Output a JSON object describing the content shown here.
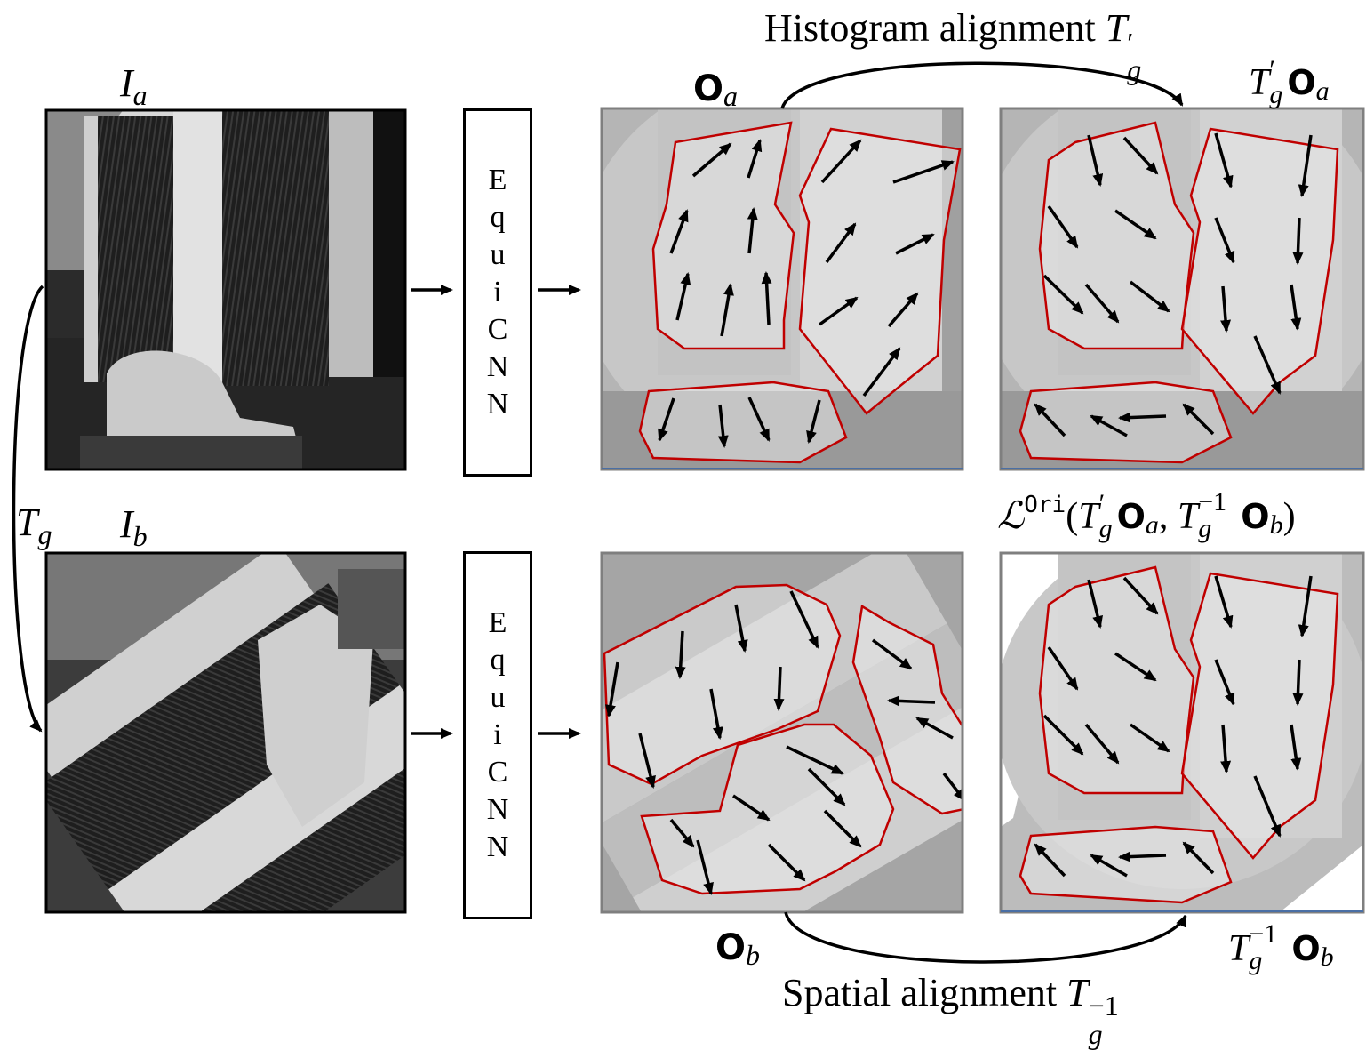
{
  "top_caption": {
    "text": "Histogram alignment ",
    "symbol": "T",
    "sup": "′",
    "sub": "g"
  },
  "bottom_caption": {
    "text": "Spatial alignment ",
    "symbol": "T",
    "sup": "−1",
    "sub": "g"
  },
  "labels": {
    "Ia": {
      "symbol": "I",
      "sub": "a"
    },
    "Ib": {
      "symbol": "I",
      "sub": "b"
    },
    "Tg": {
      "symbol": "T",
      "sub": "g"
    },
    "Oa": {
      "symbol": "O",
      "sub": "a"
    },
    "Ob": {
      "symbol": "O",
      "sub": "b"
    },
    "TgOa": {
      "T": "T",
      "sup": "′",
      "sub": "g",
      "O": "O",
      "osub": "a"
    },
    "TginvOb": {
      "T": "T",
      "sup": "−1",
      "sub": "g",
      "O": "O",
      "osub": "b"
    },
    "loss": {
      "L": "ℒ",
      "sup": "Ori",
      "open": "(",
      "comma": ", ",
      "close": ")"
    }
  },
  "cnn_letters": [
    "E",
    "q",
    "u",
    "i",
    "C",
    "N",
    "N"
  ],
  "colors": {
    "region_outline": "#c00000",
    "arrow": "#000000",
    "panel_border": "#7f7f7f",
    "image_border": "#000000"
  }
}
